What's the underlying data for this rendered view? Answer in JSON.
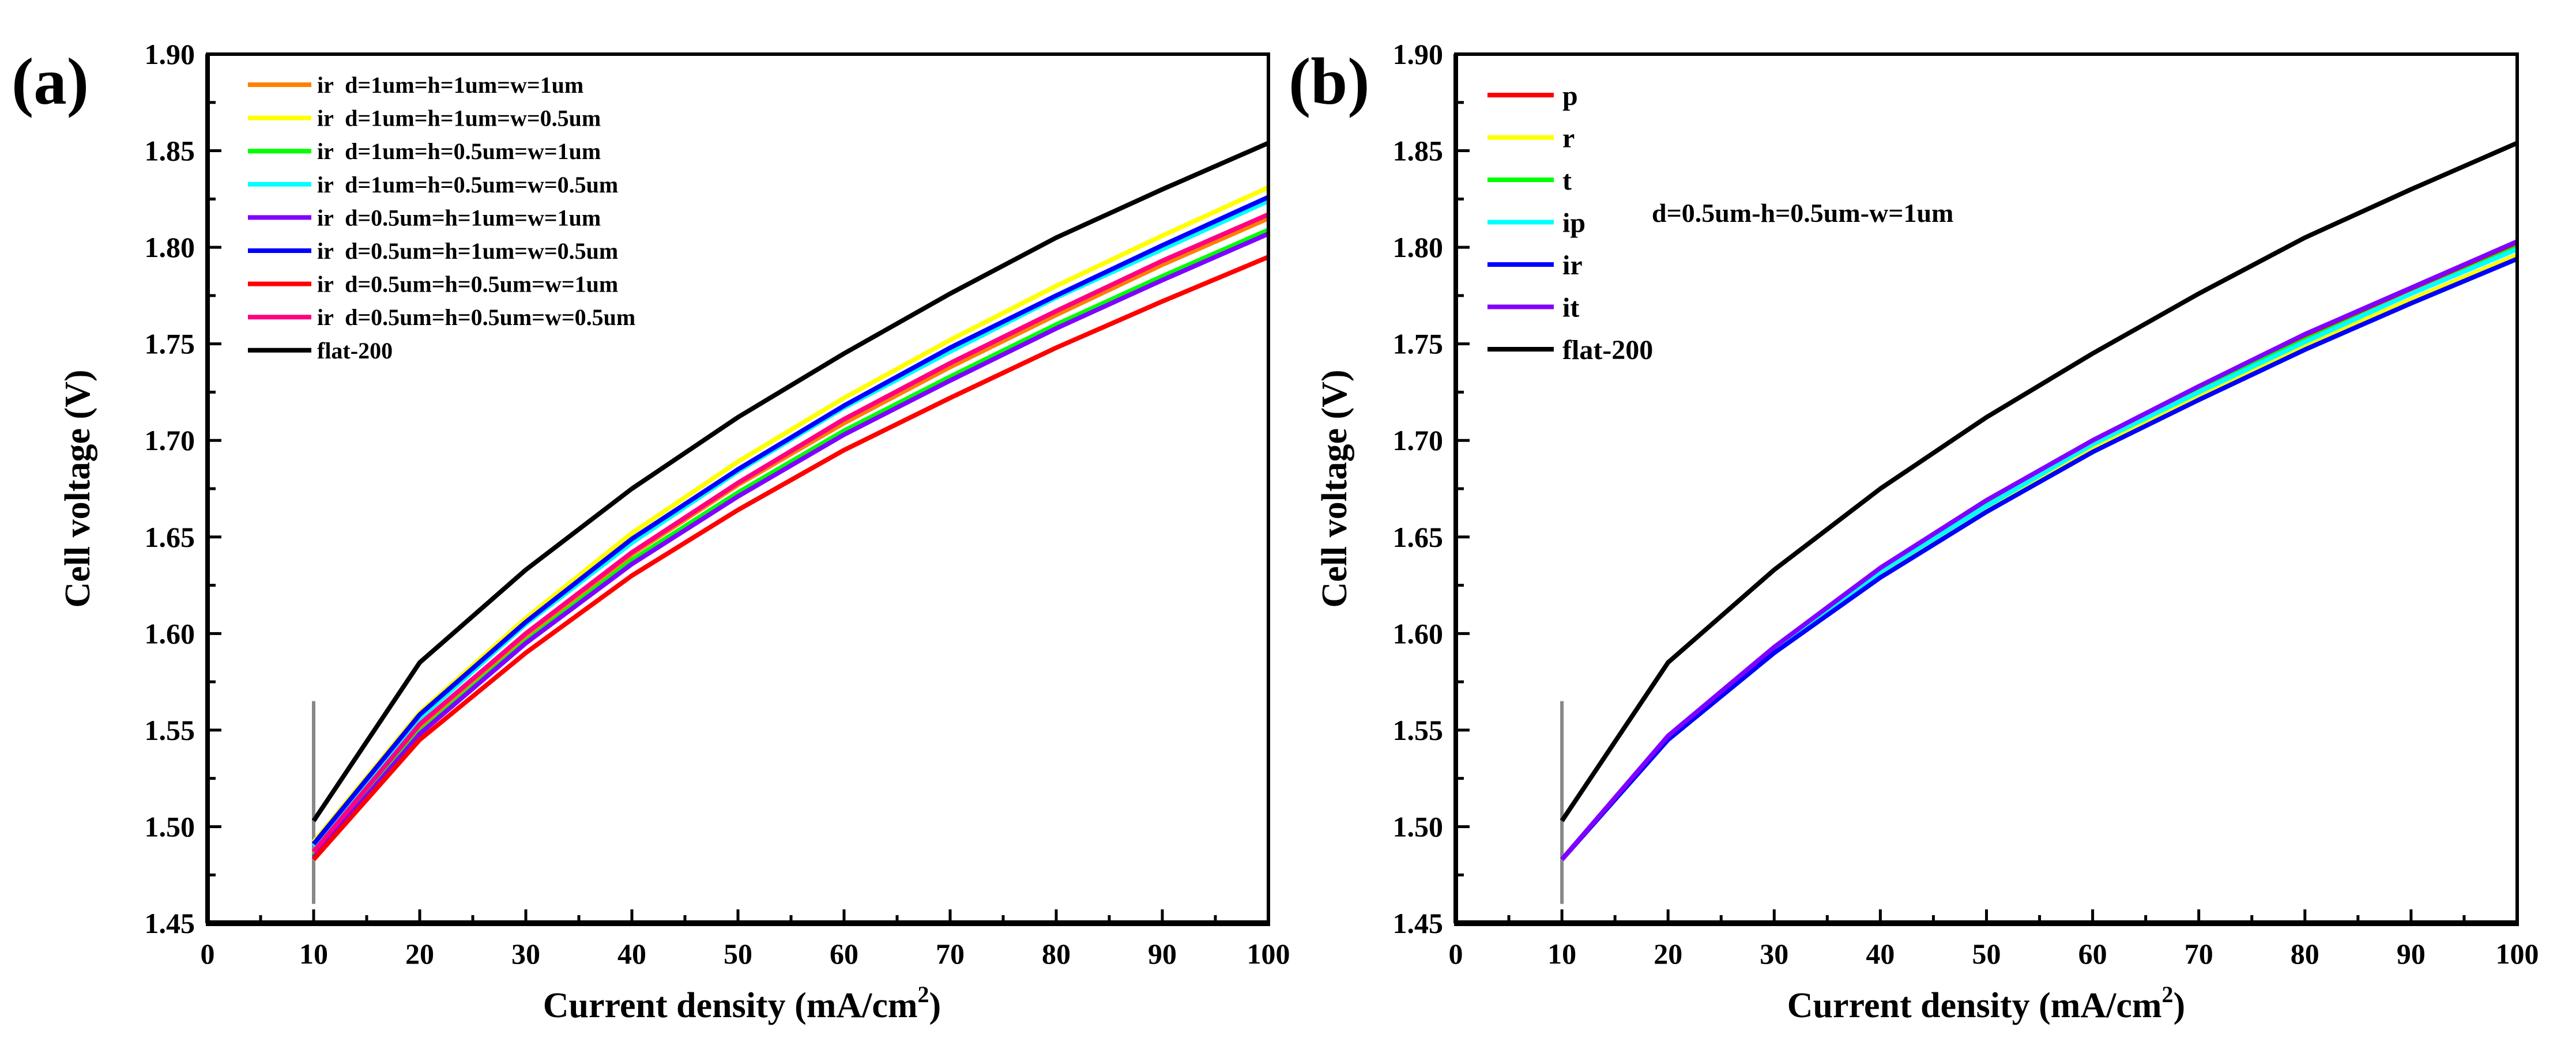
{
  "chart_data": [
    {
      "panel_label": "(a)",
      "type": "line",
      "xlabel": "Current density (mA/cm",
      "xlabel_sup": "2",
      "xlabel_close": ")",
      "ylabel": "Cell voltage (V)",
      "xlim": [
        0,
        100
      ],
      "ylim": [
        1.45,
        1.9
      ],
      "xticks": [
        "0",
        "10",
        "20",
        "30",
        "40",
        "50",
        "60",
        "70",
        "80",
        "90",
        "100"
      ],
      "yticks": [
        "1.45",
        "1.50",
        "1.55",
        "1.60",
        "1.65",
        "1.70",
        "1.75",
        "1.80",
        "1.85",
        "1.90"
      ],
      "grid": false,
      "legend_position": "top-left",
      "marker_line": {
        "x": 10,
        "y_range": [
          1.46,
          1.565
        ],
        "color": "#888888"
      },
      "x": [
        10,
        20,
        30,
        40,
        50,
        60,
        70,
        80,
        90,
        100
      ],
      "series": [
        {
          "name": "ir  d=1um=h=1um=w=1um",
          "color": "#FF8000",
          "values": [
            1.486,
            1.551,
            1.599,
            1.641,
            1.677,
            1.709,
            1.738,
            1.765,
            1.791,
            1.815
          ]
        },
        {
          "name": "ir  d=1um=h=1um=w=0.5um",
          "color": "#FFFF00",
          "values": [
            1.492,
            1.559,
            1.608,
            1.652,
            1.689,
            1.722,
            1.752,
            1.78,
            1.806,
            1.831
          ]
        },
        {
          "name": "ir  d=1um=h=0.5um=w=1um",
          "color": "#00FF00",
          "values": [
            1.485,
            1.549,
            1.596,
            1.638,
            1.673,
            1.705,
            1.733,
            1.76,
            1.785,
            1.809
          ]
        },
        {
          "name": "ir  d=1um=h=0.5um=w=0.5um",
          "color": "#00FFFF",
          "values": [
            1.49,
            1.556,
            1.605,
            1.647,
            1.684,
            1.717,
            1.746,
            1.774,
            1.799,
            1.824
          ]
        },
        {
          "name": "ir  d=0.5um=h=1um=w=1um",
          "color": "#8000FF",
          "values": [
            1.484,
            1.548,
            1.595,
            1.636,
            1.671,
            1.703,
            1.731,
            1.758,
            1.783,
            1.807
          ]
        },
        {
          "name": "ir  d=0.5um=h=1um=w=0.5um",
          "color": "#0000FF",
          "values": [
            1.491,
            1.558,
            1.606,
            1.649,
            1.685,
            1.718,
            1.748,
            1.775,
            1.801,
            1.826
          ]
        },
        {
          "name": "ir  d=0.5um=h=0.5um=w=1um",
          "color": "#FF0000",
          "values": [
            1.483,
            1.545,
            1.59,
            1.63,
            1.664,
            1.695,
            1.722,
            1.748,
            1.772,
            1.795
          ]
        },
        {
          "name": "ir  d=0.5um=h=0.5um=w=0.5um",
          "color": "#FF0080",
          "values": [
            1.487,
            1.553,
            1.6,
            1.642,
            1.678,
            1.711,
            1.74,
            1.767,
            1.793,
            1.817
          ]
        },
        {
          "name": "flat-200",
          "color": "#000000",
          "values": [
            1.503,
            1.585,
            1.633,
            1.675,
            1.712,
            1.745,
            1.776,
            1.805,
            1.83,
            1.854
          ]
        }
      ]
    },
    {
      "panel_label": "(b)",
      "type": "line",
      "xlabel": "Current density (mA/cm",
      "xlabel_sup": "2",
      "xlabel_close": ")",
      "ylabel": "Cell voltage (V)",
      "annotation": "d=0.5um-h=0.5um-w=1um",
      "xlim": [
        0,
        100
      ],
      "ylim": [
        1.45,
        1.9
      ],
      "xticks": [
        "0",
        "10",
        "20",
        "30",
        "40",
        "50",
        "60",
        "70",
        "80",
        "90",
        "100"
      ],
      "yticks": [
        "1.45",
        "1.50",
        "1.55",
        "1.60",
        "1.65",
        "1.70",
        "1.75",
        "1.80",
        "1.85",
        "1.90"
      ],
      "grid": false,
      "legend_position": "top-left",
      "marker_line": {
        "x": 10,
        "y_range": [
          1.46,
          1.565
        ],
        "color": "#888888"
      },
      "x": [
        10,
        20,
        30,
        40,
        50,
        60,
        70,
        80,
        90,
        100
      ],
      "series": [
        {
          "name": "p",
          "color": "#FF0000",
          "values": [
            1.483,
            1.546,
            1.592,
            1.633,
            1.668,
            1.7,
            1.727,
            1.754,
            1.778,
            1.802
          ]
        },
        {
          "name": "r",
          "color": "#FFFF00",
          "values": [
            1.483,
            1.545,
            1.59,
            1.63,
            1.665,
            1.696,
            1.723,
            1.749,
            1.773,
            1.796
          ]
        },
        {
          "name": "t",
          "color": "#00FF00",
          "values": [
            1.483,
            1.546,
            1.592,
            1.632,
            1.667,
            1.698,
            1.726,
            1.752,
            1.776,
            1.8
          ]
        },
        {
          "name": "ip",
          "color": "#00FFFF",
          "values": [
            1.483,
            1.546,
            1.591,
            1.632,
            1.666,
            1.698,
            1.725,
            1.751,
            1.776,
            1.799
          ]
        },
        {
          "name": "ir",
          "color": "#0000FF",
          "values": [
            1.483,
            1.545,
            1.59,
            1.629,
            1.663,
            1.694,
            1.721,
            1.747,
            1.771,
            1.794
          ]
        },
        {
          "name": "it",
          "color": "#8000FF",
          "values": [
            1.483,
            1.547,
            1.593,
            1.634,
            1.669,
            1.7,
            1.728,
            1.755,
            1.779,
            1.803
          ]
        },
        {
          "name": "flat-200",
          "color": "#000000",
          "values": [
            1.503,
            1.585,
            1.633,
            1.675,
            1.712,
            1.745,
            1.776,
            1.805,
            1.83,
            1.854
          ]
        }
      ]
    }
  ]
}
